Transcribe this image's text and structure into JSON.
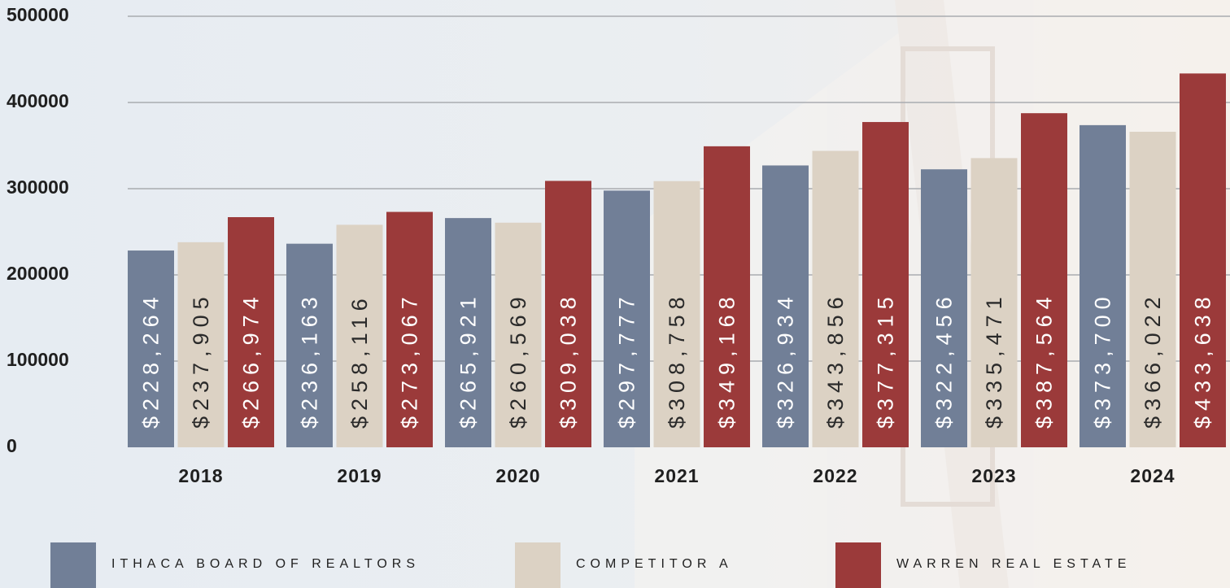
{
  "chart_data": {
    "type": "bar",
    "categories": [
      "2018",
      "2019",
      "2020",
      "2021",
      "2022",
      "2023",
      "2024"
    ],
    "series": [
      {
        "name": "ITHACA BOARD OF REALTORS",
        "color": "#717f97",
        "values": [
          228264,
          236163,
          265921,
          297777,
          326934,
          322456,
          373700
        ],
        "value_labels": [
          "$228,264",
          "$236,163",
          "$265,921",
          "$297,777",
          "$326,934",
          "$322,456",
          "$373,700"
        ]
      },
      {
        "name": "COMPETITOR A",
        "color": "#dcd2c4",
        "values": [
          237905,
          258116,
          260569,
          308758,
          343856,
          335471,
          366022
        ],
        "value_labels": [
          "$237,905",
          "$258,116",
          "$260,569",
          "$308,758",
          "$343,856",
          "$335,471",
          "$366,022"
        ]
      },
      {
        "name": "WARREN REAL ESTATE",
        "color": "#9b3a3a",
        "values": [
          266974,
          273067,
          309038,
          349168,
          377315,
          387564,
          433638
        ],
        "value_labels": [
          "$266,974",
          "$273,067",
          "$309,038",
          "$349,168",
          "$377,315",
          "$387,564",
          "$433,638"
        ]
      }
    ],
    "ylim": [
      0,
      500000
    ],
    "yticks": [
      0,
      100000,
      200000,
      300000,
      400000,
      500000
    ],
    "grid": true,
    "legend": "bottom"
  }
}
